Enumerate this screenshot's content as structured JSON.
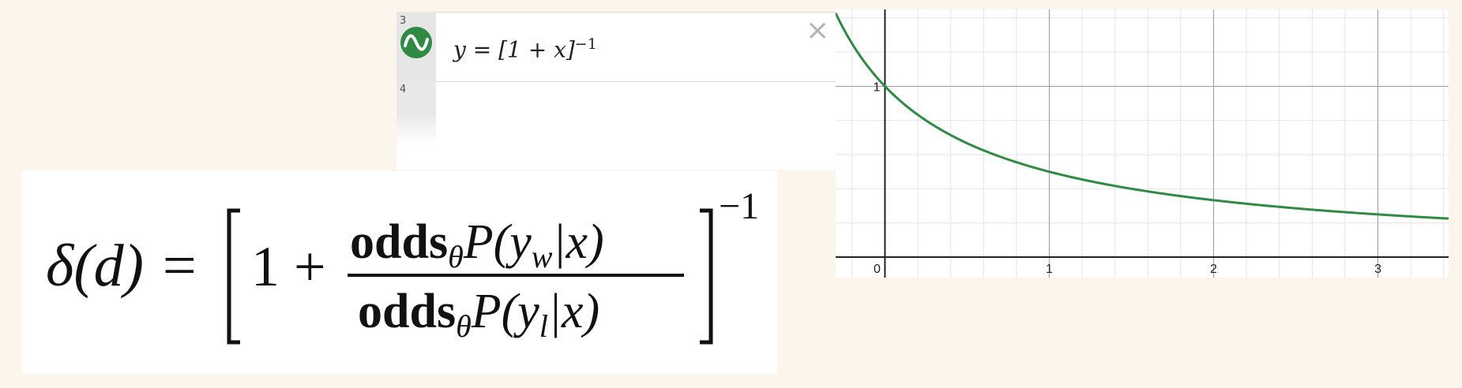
{
  "expression_panel": {
    "rows": [
      {
        "number": "3",
        "expression": "y = [1 + x]",
        "exponent": "−1",
        "icon": "sine-wave-icon",
        "color": "#2f8a43"
      },
      {
        "number": "4",
        "expression": ""
      }
    ],
    "close_label": "×"
  },
  "graph": {
    "curve_color": "#2f8a43",
    "x_ticks": [
      "0",
      "1",
      "2",
      "3"
    ],
    "y_ticks": [
      "1"
    ],
    "xlim": [
      -0.3,
      3.43
    ],
    "ylim": [
      -0.12,
      1.45
    ]
  },
  "chart_data": {
    "type": "line",
    "title": "",
    "xlabel": "",
    "ylabel": "",
    "xlim": [
      -0.3,
      3.43
    ],
    "ylim": [
      -0.12,
      1.45
    ],
    "grid": true,
    "series": [
      {
        "x": [
          -0.3,
          -0.2,
          -0.1,
          0,
          0.25,
          0.5,
          0.75,
          1,
          1.5,
          2,
          2.5,
          3,
          3.43
        ],
        "values": [
          1.43,
          1.25,
          1.11,
          1.0,
          0.8,
          0.67,
          0.57,
          0.5,
          0.4,
          0.33,
          0.29,
          0.25,
          0.23
        ]
      }
    ]
  },
  "formula": {
    "lhs": "δ(d) =",
    "one_plus": "1 +",
    "numerator_bold": "odds",
    "theta": "θ",
    "numerator_rest": "P(y",
    "numerator_sub": "w",
    "numerator_end": "|x)",
    "denominator_bold": "odds",
    "denominator_rest": "P(y",
    "denominator_sub": "l",
    "denominator_end": "|x)",
    "exponent": "−1"
  }
}
